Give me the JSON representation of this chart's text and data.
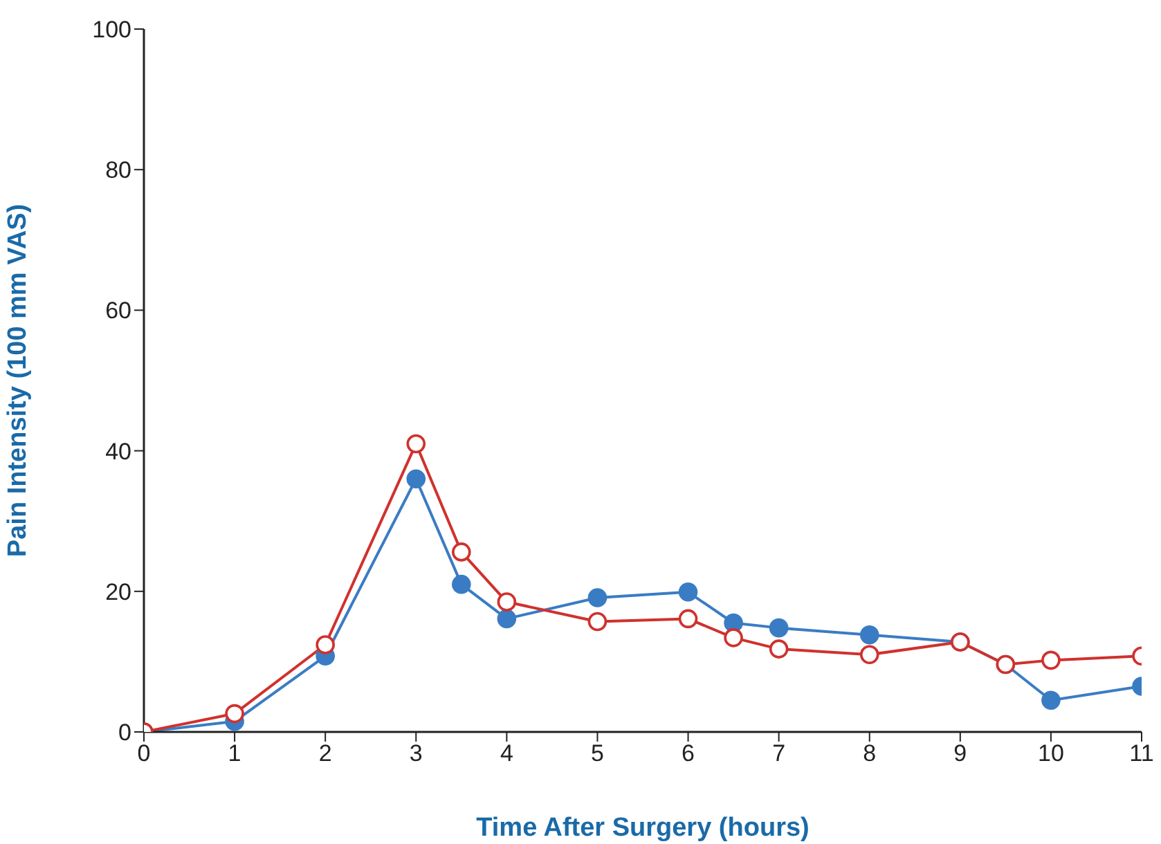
{
  "chart_data": {
    "type": "line",
    "xlabel": "Time After Surgery (hours)",
    "ylabel": "Pain Intensity (100 mm VAS)",
    "x": [
      0,
      1,
      2,
      3,
      3.5,
      4,
      5,
      6,
      6.5,
      7,
      8,
      9,
      9.5,
      10,
      11
    ],
    "series": [
      {
        "color": "#3a7cc4",
        "values": [
          0,
          1.5,
          10.8,
          36,
          21,
          16.1,
          19.1,
          19.9,
          15.5,
          14.8,
          13.8,
          12.8,
          9.6,
          4.5,
          6.5
        ]
      },
      {
        "color": "#d0312d",
        "values": [
          0,
          2.6,
          12.4,
          41,
          25.6,
          18.5,
          15.7,
          16.1,
          13.4,
          11.8,
          11,
          12.8,
          9.6,
          10.2,
          10.8
        ]
      }
    ],
    "xlim": [
      0,
      11
    ],
    "xticks": [
      0,
      1,
      2,
      3,
      4,
      5,
      6,
      7,
      8,
      9,
      10,
      11
    ],
    "ylim": [
      0,
      100
    ],
    "yticks": [
      0,
      20,
      40,
      60,
      80,
      100
    ],
    "grid": false,
    "marker": "circle",
    "line_style": "solid"
  }
}
